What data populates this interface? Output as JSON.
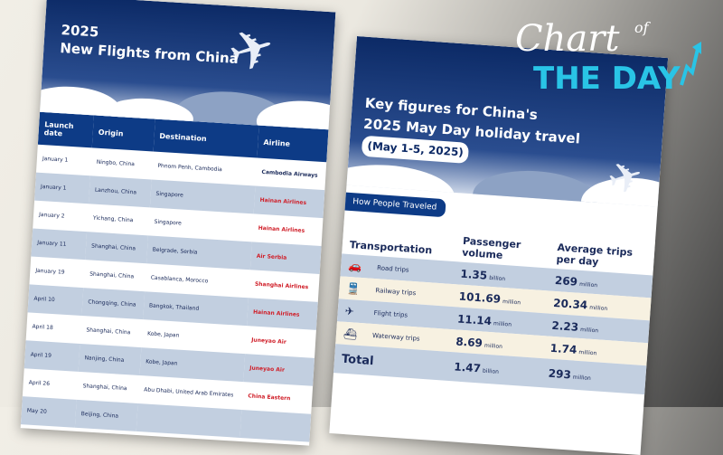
{
  "left": {
    "title": "2025\nNew Flights from China",
    "columns": [
      "Launch date",
      "Origin",
      "Destination",
      "Airline"
    ],
    "rows": [
      {
        "date": "January 1",
        "origin": "Ningbo, China",
        "dest": "Phnom Penh, Cambodia",
        "airline": "Cambodia Airways"
      },
      {
        "date": "January 1",
        "origin": "Lanzhou, China",
        "dest": "Singapore",
        "airline": "Hainan Airlines"
      },
      {
        "date": "January 2",
        "origin": "Yichang, China",
        "dest": "Singapore",
        "airline": "Hainan Airlines"
      },
      {
        "date": "January 11",
        "origin": "Shanghai, China",
        "dest": "Belgrade, Serbia",
        "airline": "Air Serbia"
      },
      {
        "date": "January 19",
        "origin": "Shanghai, China",
        "dest": "Casablanca, Morocco",
        "airline": "Shanghai Airlines"
      },
      {
        "date": "April 10",
        "origin": "Chongqing, China",
        "dest": "Bangkok, Thailand",
        "airline": "Hainan Airlines"
      },
      {
        "date": "April 18",
        "origin": "Shanghai, China",
        "dest": "Kobe, Japan",
        "airline": "Juneyao Air"
      },
      {
        "date": "April 19",
        "origin": "Nanjing, China",
        "dest": "Kobe, Japan",
        "airline": "Juneyao Air"
      },
      {
        "date": "April 26",
        "origin": "Shanghai, China",
        "dest": "Abu Dhabi, United Arab Emirates",
        "airline": "China Eastern"
      },
      {
        "date": "May 20",
        "origin": "Beijing, China",
        "dest": "",
        "airline": ""
      }
    ]
  },
  "right": {
    "title_line1": "Key figures for China's",
    "title_line2": "2025 May Day holiday travel",
    "subtitle": "(May 1-5, 2025)",
    "section": "How People Traveled",
    "columns": [
      "Transportation",
      "Passenger volume",
      "Average trips per day"
    ],
    "rows": [
      {
        "icon": "car-icon",
        "mode": "Road trips",
        "volume": "1.35",
        "vunit": "billion",
        "avg": "269",
        "aunit": "million"
      },
      {
        "icon": "train-icon",
        "mode": "Railway trips",
        "volume": "101.69",
        "vunit": "million",
        "avg": "20.34",
        "aunit": "million"
      },
      {
        "icon": "plane-icon",
        "mode": "Flight trips",
        "volume": "11.14",
        "vunit": "million",
        "avg": "2.23",
        "aunit": "million"
      },
      {
        "icon": "ship-icon",
        "mode": "Waterway trips",
        "volume": "8.69",
        "vunit": "million",
        "avg": "1.74",
        "aunit": "million"
      }
    ],
    "total": {
      "label": "Total",
      "volume": "1.47",
      "vunit": "billion",
      "avg": "293",
      "aunit": "million"
    }
  },
  "logo": {
    "line1": "Chart",
    "of": "of",
    "line2": "THE DAY"
  },
  "colors": {
    "navy": "#0d3b86",
    "row_alt": "#c2cfe0",
    "logo_cyan": "#29c4e6"
  }
}
